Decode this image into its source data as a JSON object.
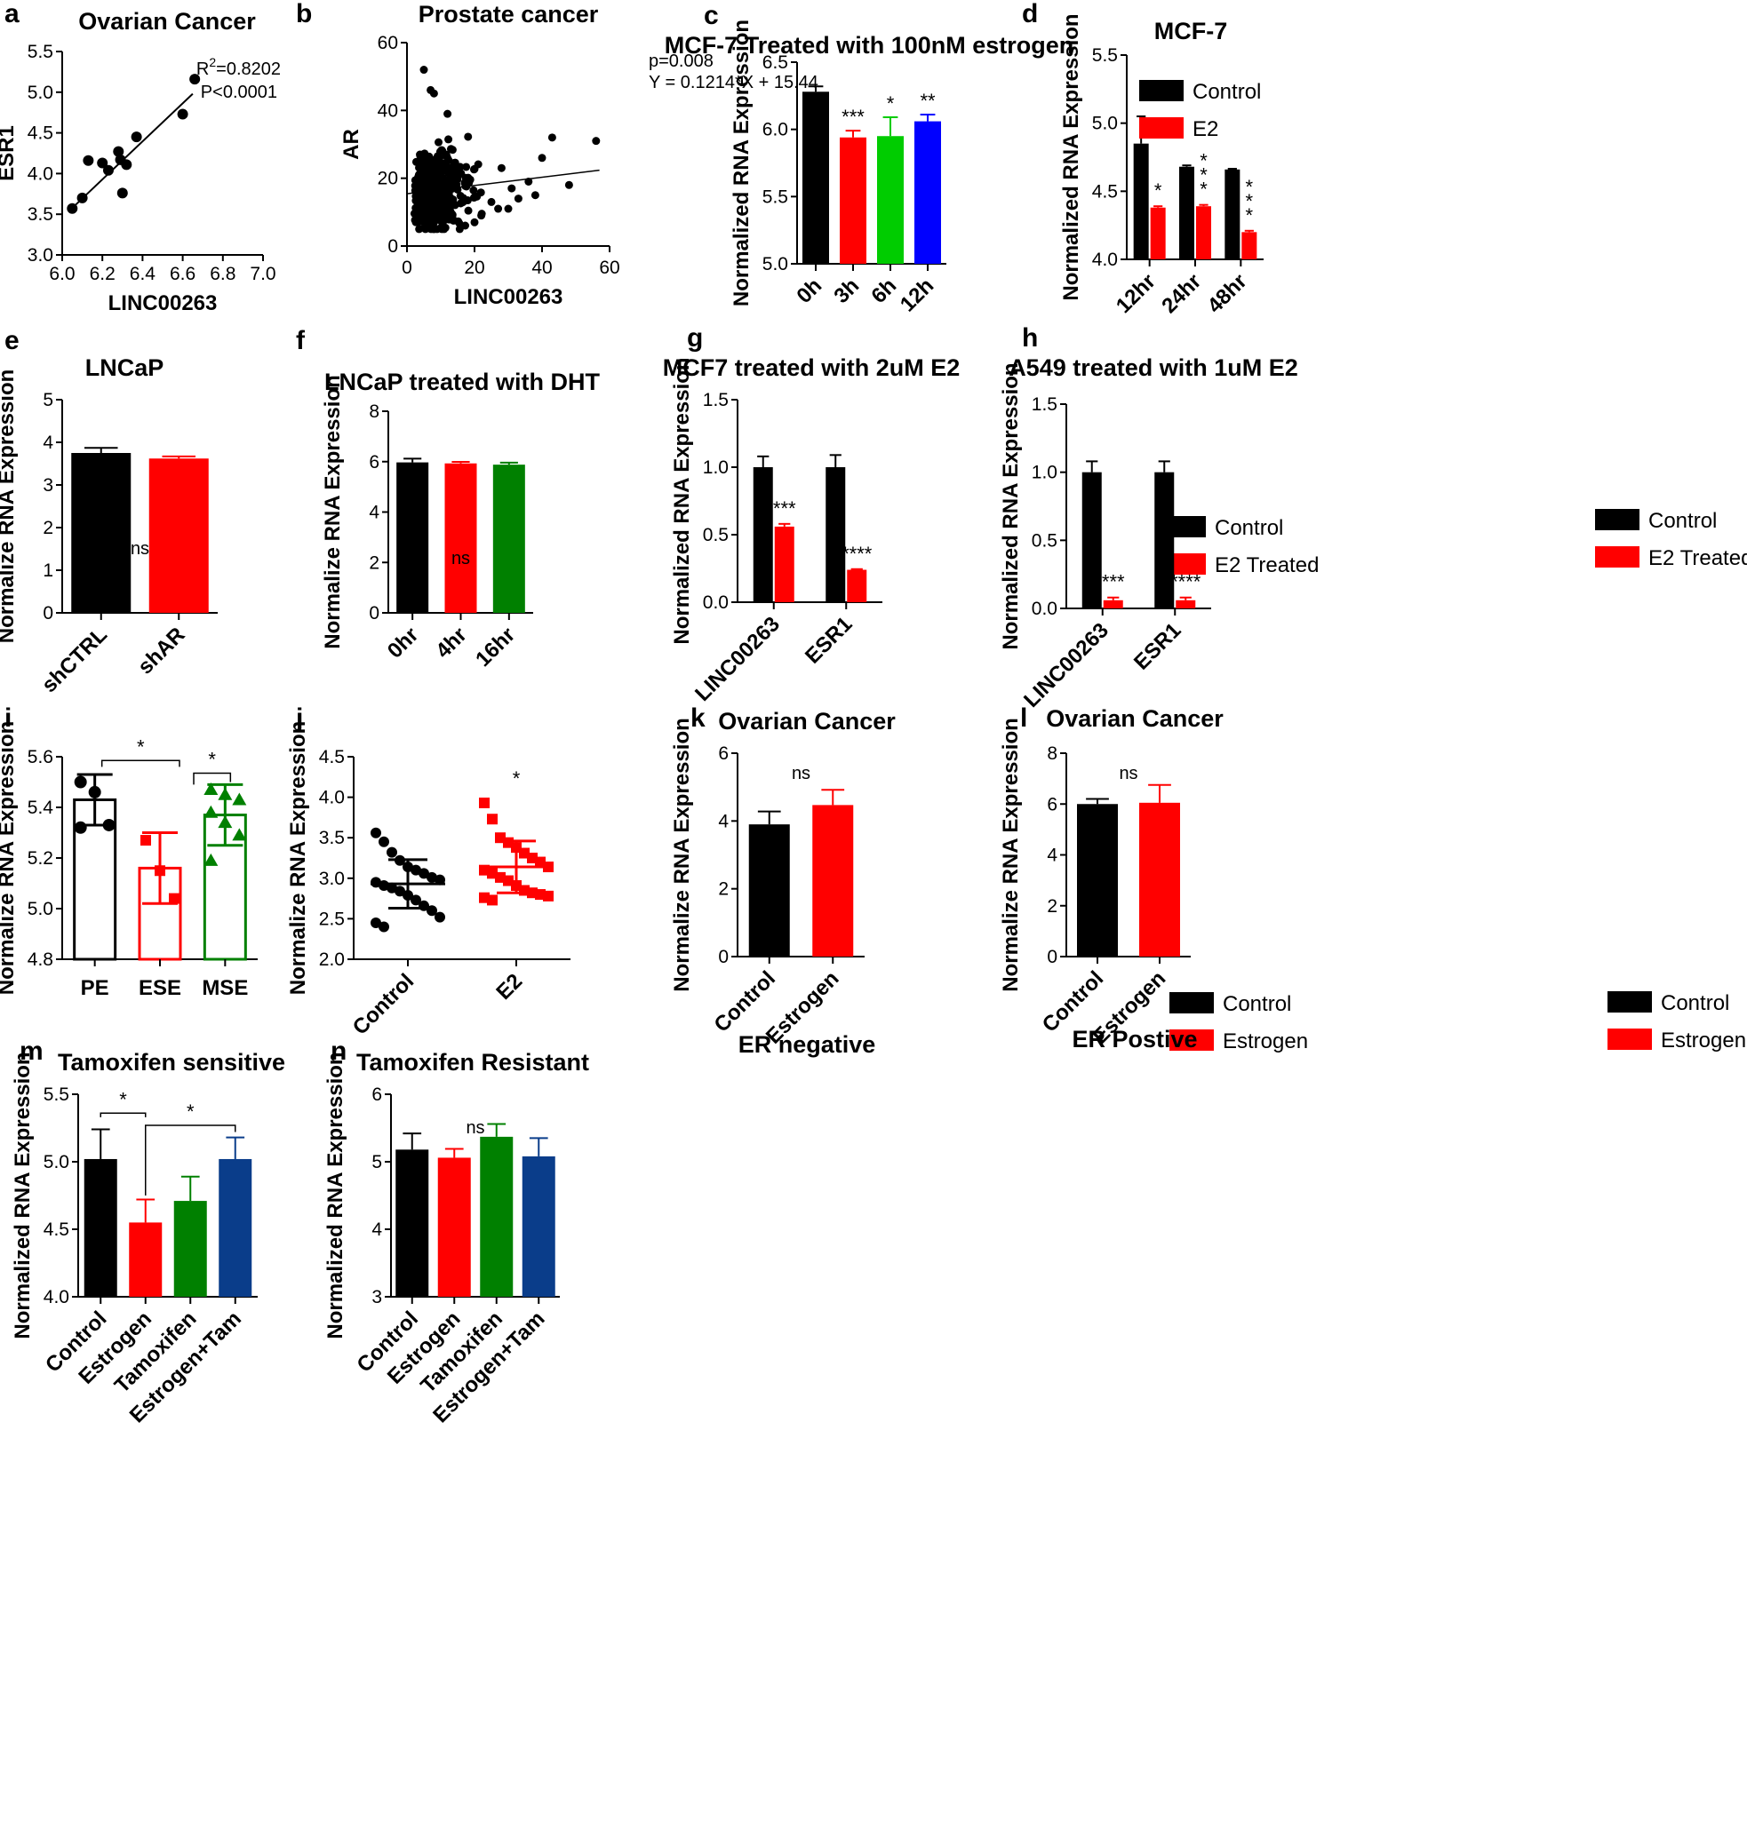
{
  "chart_data": [
    {
      "id": "a",
      "panel_label": "a",
      "type": "scatter",
      "title": "Ovarian Cancer",
      "xlabel": "LINC00263",
      "ylabel": "ESR1",
      "xlim": [
        6.0,
        7.0
      ],
      "ylim": [
        3.0,
        5.5
      ],
      "xticks": [
        "6.0",
        "6.2",
        "6.4",
        "6.6",
        "6.8",
        "7.0"
      ],
      "yticks": [
        "3.0",
        "3.5",
        "4.0",
        "4.5",
        "5.0",
        "5.5"
      ],
      "points": [
        [
          6.05,
          3.57
        ],
        [
          6.1,
          3.7
        ],
        [
          6.13,
          4.16
        ],
        [
          6.2,
          4.13
        ],
        [
          6.23,
          4.04
        ],
        [
          6.28,
          4.27
        ],
        [
          6.29,
          4.17
        ],
        [
          6.3,
          3.76
        ],
        [
          6.32,
          4.11
        ],
        [
          6.37,
          4.45
        ],
        [
          6.6,
          4.73
        ],
        [
          6.66,
          5.16
        ]
      ],
      "fit": [
        [
          6.06,
          3.6
        ],
        [
          6.65,
          4.98
        ]
      ],
      "annotations": {
        "r2_prefix": "R",
        "r2_sup": "2",
        "r2_value": "=0.8202",
        "p": "P<0.0001"
      }
    },
    {
      "id": "b",
      "panel_label": "b",
      "type": "scatter",
      "title": "Prostate cancer",
      "xlabel": "LINC00263",
      "ylabel": "AR",
      "xlim": [
        0,
        60
      ],
      "ylim": [
        0,
        60
      ],
      "xticks": [
        "0",
        "20",
        "40",
        "60"
      ],
      "yticks": [
        "0",
        "20",
        "40",
        "60"
      ],
      "n_points": 420,
      "x_mean": 9,
      "y_mean": 17,
      "outliers": [
        [
          5,
          52
        ],
        [
          7,
          46
        ],
        [
          8,
          45
        ],
        [
          12,
          39
        ],
        [
          43,
          32
        ],
        [
          56,
          31
        ],
        [
          40,
          26
        ],
        [
          48,
          18
        ],
        [
          36,
          19
        ],
        [
          33,
          14
        ],
        [
          30,
          11
        ],
        [
          27,
          11
        ],
        [
          22,
          9
        ],
        [
          25,
          13
        ],
        [
          31,
          17
        ],
        [
          20,
          7
        ],
        [
          28,
          23
        ],
        [
          38,
          15
        ]
      ],
      "fit": [
        [
          0,
          15.44
        ],
        [
          57,
          22.36
        ]
      ],
      "annotations": {
        "p": "p=0.008",
        "eq": "Y = 0.1214*X + 15.44"
      }
    },
    {
      "id": "c",
      "panel_label": "c",
      "type": "bar",
      "title": "MCF-7 Treated with 100nM estrogen",
      "ylabel": "Normalized RNA Expression",
      "ylim": [
        5.0,
        6.5
      ],
      "yticks": [
        "5.0",
        "5.5",
        "6.0",
        "6.5"
      ],
      "categories": [
        "0h",
        "3h",
        "6h",
        "12h"
      ],
      "values": [
        6.28,
        5.94,
        5.95,
        6.06
      ],
      "errors": [
        0.04,
        0.05,
        0.14,
        0.05
      ],
      "colors": [
        "#000000",
        "#ff0000",
        "#00cc00",
        "#0000ff"
      ],
      "significance": [
        "",
        "***",
        "*",
        "**"
      ]
    },
    {
      "id": "d",
      "panel_label": "d",
      "type": "bar",
      "title": "MCF-7",
      "ylabel": "Normalized RNA Expression",
      "ylim": [
        4.0,
        5.5
      ],
      "yticks": [
        "4.0",
        "4.5",
        "5.0",
        "5.5"
      ],
      "categories": [
        "12hr",
        "24hr",
        "48hr"
      ],
      "series": [
        {
          "name": "Control",
          "values": [
            4.85,
            4.68,
            4.66
          ],
          "errors": [
            0.2,
            0.01,
            0.005
          ],
          "color": "#000000"
        },
        {
          "name": "E2",
          "values": [
            4.38,
            4.39,
            4.2
          ],
          "errors": [
            0.01,
            0.01,
            0.01
          ],
          "color": "#ff0000"
        }
      ],
      "significance": [
        "*",
        "***",
        "***"
      ],
      "legend_position": "top-right"
    },
    {
      "id": "e",
      "panel_label": "e",
      "type": "bar",
      "title": "LNCaP",
      "ylabel": "Normalize RNA Expression",
      "ylim": [
        0,
        5
      ],
      "yticks": [
        "0",
        "1",
        "2",
        "3",
        "4",
        "5"
      ],
      "categories": [
        "shCTRL",
        "shAR"
      ],
      "values": [
        3.75,
        3.62
      ],
      "errors": [
        0.12,
        0.05
      ],
      "colors": [
        "#000000",
        "#ff0000"
      ],
      "note": "ns"
    },
    {
      "id": "f",
      "panel_label": "f",
      "type": "bar",
      "title": "LNCaP treated with DHT",
      "ylabel": "Normalize RNA Expression",
      "ylim": [
        0,
        8
      ],
      "yticks": [
        "0",
        "2",
        "4",
        "6",
        "8"
      ],
      "categories": [
        "0hr",
        "4hr",
        "16hr"
      ],
      "values": [
        5.97,
        5.93,
        5.88
      ],
      "errors": [
        0.15,
        0.06,
        0.08
      ],
      "colors": [
        "#000000",
        "#ff0000",
        "#008000"
      ],
      "note": "ns"
    },
    {
      "id": "g",
      "panel_label": "g",
      "type": "bar",
      "title": "MCF7 treated with 2uM E2",
      "ylabel": "Normalized RNA Expression",
      "ylim": [
        0,
        1.5
      ],
      "yticks": [
        "0.0",
        "0.5",
        "1.0",
        "1.5"
      ],
      "categories": [
        "LINC00263",
        "ESR1"
      ],
      "series": [
        {
          "name": "Control",
          "values": [
            1.0,
            1.0
          ],
          "errors": [
            0.08,
            0.09
          ],
          "color": "#000000"
        },
        {
          "name": "E2 Treated",
          "values": [
            0.56,
            0.24
          ],
          "errors": [
            0.02,
            0.005
          ],
          "color": "#ff0000"
        }
      ],
      "significance": [
        "***",
        "****"
      ],
      "legend_position": "top-right"
    },
    {
      "id": "h",
      "panel_label": "h",
      "type": "bar",
      "title": "A549 treated with 1uM E2",
      "ylabel": "Normalized RNA Expression",
      "ylim": [
        0,
        1.5
      ],
      "yticks": [
        "0.0",
        "0.5",
        "1.0",
        "1.5"
      ],
      "categories": [
        "LINC00263",
        "ESR1"
      ],
      "series": [
        {
          "name": "Control",
          "values": [
            1.0,
            1.0
          ],
          "errors": [
            0.08,
            0.08
          ],
          "color": "#000000"
        },
        {
          "name": "E2 Treated",
          "values": [
            0.06,
            0.06
          ],
          "errors": [
            0.02,
            0.02
          ],
          "color": "#ff0000"
        }
      ],
      "significance": [
        "***",
        "****"
      ],
      "legend_position": "top-right"
    },
    {
      "id": "i",
      "panel_label": "i",
      "type": "bar",
      "subtype": "hollow_bar_with_points",
      "ylabel": "Normalize RNA Expression",
      "ylim": [
        4.8,
        5.6
      ],
      "yticks": [
        "4.8",
        "5.0",
        "5.2",
        "5.4",
        "5.6"
      ],
      "categories": [
        "PE",
        "ESE",
        "MSE"
      ],
      "values": [
        5.43,
        5.16,
        5.37
      ],
      "errors": [
        0.1,
        0.14,
        0.12
      ],
      "colors": [
        "#000000",
        "#ff0000",
        "#008000"
      ],
      "points": [
        [
          5.5,
          5.46,
          5.33,
          5.32
        ],
        [
          5.27,
          5.15,
          5.04
        ],
        [
          5.47,
          5.45,
          5.43,
          5.38,
          5.34,
          5.29,
          5.19
        ]
      ],
      "brackets": [
        {
          "from": 0,
          "to": 1,
          "label": "*"
        },
        {
          "from": 1,
          "to": 2,
          "label": "*"
        }
      ]
    },
    {
      "id": "j",
      "panel_label": "j",
      "type": "scatter",
      "subtype": "dot_plot",
      "ylabel": "Normalize RNA Expression",
      "ylim": [
        2.0,
        4.5
      ],
      "yticks": [
        "2.0",
        "2.5",
        "3.0",
        "3.5",
        "4.0",
        "4.5"
      ],
      "categories": [
        "Control",
        "E2"
      ],
      "means": [
        2.93,
        3.14
      ],
      "sd": [
        0.3,
        0.32
      ],
      "colors": [
        "#000000",
        "#ff0000"
      ],
      "points": [
        [
          3.56,
          3.45,
          3.32,
          3.22,
          3.14,
          3.1,
          3.06,
          3.01,
          2.98,
          2.95,
          2.91,
          2.88,
          2.84,
          2.79,
          2.73,
          2.66,
          2.6,
          2.52,
          2.45,
          2.4
        ],
        [
          3.93,
          3.73,
          3.5,
          3.44,
          3.38,
          3.31,
          3.25,
          3.2,
          3.14,
          3.1,
          3.06,
          3.01,
          2.97,
          2.91,
          2.85,
          2.82,
          2.8,
          2.78,
          2.76,
          2.73
        ]
      ],
      "significance": [
        "",
        "*"
      ]
    },
    {
      "id": "k",
      "panel_label": "k",
      "type": "bar",
      "title": "Ovarian Cancer",
      "subtitle": "ER negative",
      "ylabel": "Normalize RNA Expression",
      "ylim": [
        0,
        6
      ],
      "yticks": [
        "0",
        "2",
        "4",
        "6"
      ],
      "categories": [
        "Control",
        "Estrogen"
      ],
      "values": [
        3.9,
        4.47
      ],
      "errors": [
        0.38,
        0.45
      ],
      "colors": [
        "#000000",
        "#ff0000"
      ],
      "legend": [
        "Control",
        "Estrogen"
      ],
      "note": "ns"
    },
    {
      "id": "l",
      "panel_label": "l",
      "type": "bar",
      "title": "Ovarian Cancer",
      "subtitle": "ER Postive",
      "ylabel": "Normalize RNA Expression",
      "ylim": [
        0,
        8
      ],
      "yticks": [
        "0",
        "2",
        "4",
        "6",
        "8"
      ],
      "categories": [
        "Control",
        "Estrogen"
      ],
      "values": [
        6.0,
        6.05
      ],
      "errors": [
        0.2,
        0.7
      ],
      "colors": [
        "#000000",
        "#ff0000"
      ],
      "legend": [
        "Control",
        "Estrogen"
      ],
      "note": "ns"
    },
    {
      "id": "m",
      "panel_label": "m",
      "type": "bar",
      "title": "Tamoxifen sensitive",
      "ylabel": "Normalized RNA Expression",
      "ylim": [
        4.0,
        5.5
      ],
      "yticks": [
        "4.0",
        "4.5",
        "5.0",
        "5.5"
      ],
      "categories": [
        "Control",
        "Estrogen",
        "Tamoxifen",
        "Estrogen+Tam"
      ],
      "values": [
        5.02,
        4.55,
        4.71,
        5.02
      ],
      "errors": [
        0.22,
        0.17,
        0.18,
        0.16
      ],
      "colors": [
        "#000000",
        "#ff0000",
        "#008000",
        "#0a3d8a"
      ],
      "brackets": [
        {
          "from": 0,
          "to": 1,
          "label": "*"
        },
        {
          "from": 1,
          "to": 3,
          "label": "*"
        }
      ]
    },
    {
      "id": "n",
      "panel_label": "n",
      "type": "bar",
      "title": "Tamoxifen Resistant",
      "ylabel": "Normalized RNA Expression",
      "ylim": [
        3,
        6
      ],
      "yticks": [
        "3",
        "4",
        "5",
        "6"
      ],
      "categories": [
        "Control",
        "Estrogen",
        "Tamoxifen",
        "Estrogen+Tam"
      ],
      "values": [
        5.18,
        5.06,
        5.37,
        5.08
      ],
      "errors": [
        0.24,
        0.13,
        0.19,
        0.27
      ],
      "colors": [
        "#000000",
        "#ff0000",
        "#008000",
        "#0a3d8a"
      ],
      "note": "ns"
    }
  ]
}
